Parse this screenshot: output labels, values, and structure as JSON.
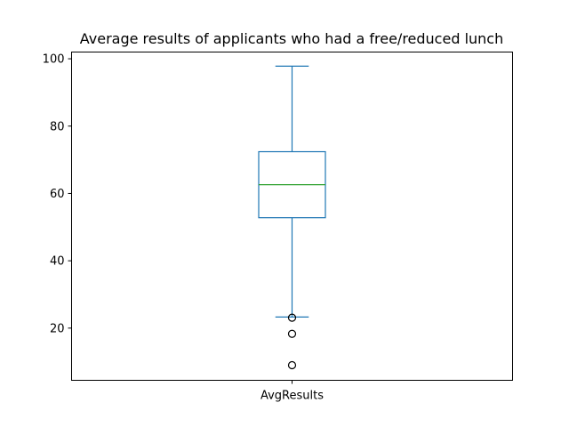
{
  "chart_data": {
    "type": "box",
    "title": "Average results of applicants who had a free/reduced lunch",
    "xlabel": "",
    "ylabel": "",
    "categories": [
      "AvgResults"
    ],
    "ylim": [
      4.5,
      102
    ],
    "yticks": [
      20,
      40,
      60,
      80,
      100
    ],
    "grid": false,
    "boxes": [
      {
        "category": "AvgResults",
        "whisker_low": 23.3,
        "q1": 52.8,
        "median": 62.6,
        "q3": 72.4,
        "whisker_high": 97.8,
        "outliers": [
          23.1,
          18.3,
          9.0
        ]
      }
    ],
    "colors": {
      "box": "#1f77b4",
      "median": "#2ca02c",
      "outlier": "#000000"
    }
  }
}
